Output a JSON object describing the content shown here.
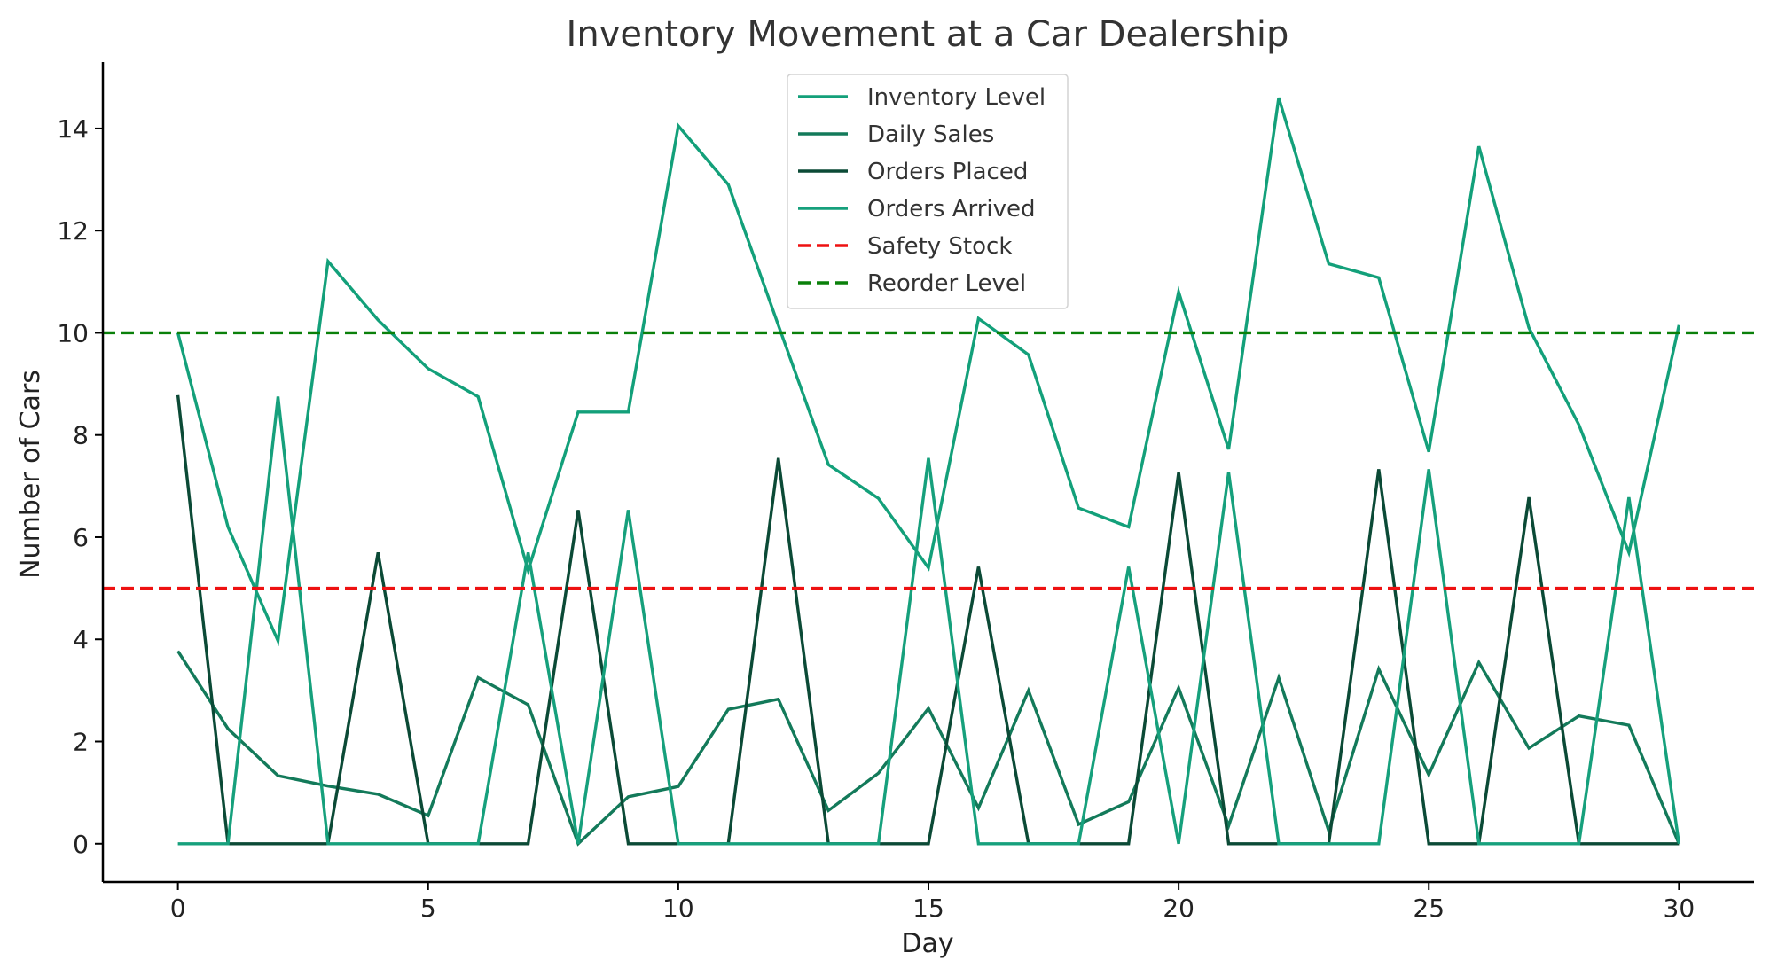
{
  "chart_data": {
    "type": "line",
    "title": "Inventory Movement at a Car Dealership",
    "xlabel": "Day",
    "ylabel": "Number of Cars",
    "xlim": [
      -1.5,
      31.5
    ],
    "ylim": [
      -0.75,
      15.3
    ],
    "x_ticks": [
      0,
      5,
      10,
      15,
      20,
      25,
      30
    ],
    "y_ticks": [
      0,
      2,
      4,
      6,
      8,
      10,
      12,
      14
    ],
    "grid": false,
    "legend_position": "top-center",
    "x": [
      0,
      1,
      2,
      3,
      4,
      5,
      6,
      7,
      8,
      9,
      10,
      11,
      12,
      13,
      14,
      15,
      16,
      17,
      18,
      19,
      20,
      21,
      22,
      23,
      24,
      25,
      26,
      27,
      28,
      29,
      30
    ],
    "series": [
      {
        "name": "Inventory Level",
        "color": "#13a07a",
        "style": "solid",
        "values": [
          10.0,
          6.2,
          3.97,
          11.4,
          10.25,
          9.3,
          8.75,
          5.35,
          8.45,
          8.45,
          14.05,
          12.9,
          10.15,
          7.42,
          6.76,
          5.4,
          10.28,
          9.57,
          6.57,
          6.2,
          10.8,
          7.72,
          14.6,
          11.35,
          11.08,
          7.67,
          13.65,
          10.1,
          8.2,
          5.7,
          10.15
        ]
      },
      {
        "name": "Daily Sales",
        "color": "#137a5a",
        "style": "solid",
        "values": [
          3.77,
          2.25,
          1.33,
          1.13,
          0.97,
          0.55,
          3.25,
          2.72,
          0.0,
          0.92,
          1.12,
          2.63,
          2.83,
          0.65,
          1.38,
          2.65,
          0.7,
          3.0,
          0.38,
          0.82,
          3.05,
          0.35,
          3.25,
          0.25,
          3.42,
          1.35,
          3.55,
          1.87,
          2.5,
          2.32,
          0.0
        ]
      },
      {
        "name": "Orders Placed",
        "color": "#0b4a36",
        "style": "solid",
        "values": [
          8.78,
          0,
          0,
          0,
          5.7,
          0,
          0,
          0,
          6.53,
          0,
          0,
          0,
          7.55,
          0,
          0,
          0,
          5.42,
          0,
          0,
          0,
          7.27,
          0,
          0,
          0,
          7.33,
          0,
          0,
          6.78,
          0,
          0,
          0
        ]
      },
      {
        "name": "Orders Arrived",
        "color": "#16a07c",
        "style": "solid",
        "values": [
          0,
          0,
          8.75,
          0,
          0,
          0,
          0,
          5.7,
          0,
          6.53,
          0,
          0,
          0,
          0,
          0,
          7.55,
          0,
          0,
          0,
          5.42,
          0,
          7.27,
          0,
          0,
          0,
          7.33,
          0,
          0,
          0,
          6.78,
          0
        ]
      },
      {
        "name": "Safety Stock",
        "color": "#ee1111",
        "style": "dashed",
        "constant": 5
      },
      {
        "name": "Reorder Level",
        "color": "#0a800a",
        "style": "dashed",
        "constant": 10
      }
    ]
  }
}
